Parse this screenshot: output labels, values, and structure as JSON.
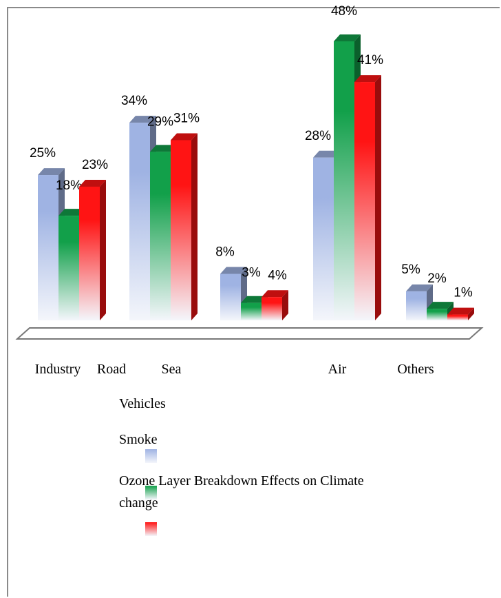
{
  "chart_data": {
    "type": "bar3d",
    "categories": [
      "Industry",
      "Road",
      "Sea",
      "Air",
      "Others"
    ],
    "series": [
      {
        "name": "Vehicles",
        "color": "#9fb3e3",
        "values": [
          25,
          34,
          8,
          28,
          5
        ],
        "value_labels": [
          "25%",
          "34%",
          "8%",
          "28%",
          "5%"
        ]
      },
      {
        "name": "Smoke",
        "color": "#12a04a",
        "values": [
          18,
          29,
          3,
          48,
          2
        ],
        "value_labels": [
          "18%",
          "29%",
          "3%",
          "48%",
          "2%"
        ]
      },
      {
        "name": "Ozone Layer Breakdown Effects on Climate change",
        "color": "#ff1414",
        "values": [
          23,
          31,
          4,
          41,
          1
        ],
        "value_labels": [
          "23%",
          "31%",
          "4%",
          "41%",
          "1%"
        ]
      }
    ]
  }
}
